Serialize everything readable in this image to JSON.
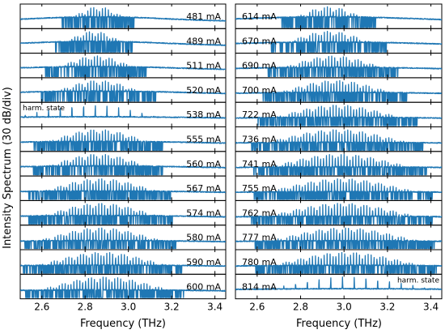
{
  "chart_data": {
    "type": "line",
    "ylabel": "Intensity Spectrum (30 dB/div)",
    "xlabel": "Frequency (THz)",
    "xlim": [
      2.5,
      3.45
    ],
    "xticks": [
      2.6,
      2.8,
      3.0,
      3.2,
      3.4
    ],
    "xtick_labels": [
      "2.6",
      "2.8",
      "3.0",
      "3.2",
      "3.4"
    ],
    "grid": false,
    "line_color": "#1f77b4",
    "harmonic_label": "harm. state",
    "columns": [
      {
        "panels": [
          {
            "current": "481 mA",
            "center": 2.86,
            "width": 0.1,
            "spacing": 0.0135,
            "floor": 0.48,
            "mode": "comb"
          },
          {
            "current": "489 mA",
            "center": 2.84,
            "width": 0.11,
            "spacing": 0.0135,
            "floor": 0.48,
            "mode": "comb"
          },
          {
            "current": "511 mA",
            "center": 2.85,
            "width": 0.14,
            "spacing": 0.0135,
            "floor": 0.45,
            "mode": "comb"
          },
          {
            "current": "520 mA",
            "center": 2.86,
            "width": 0.16,
            "spacing": 0.0135,
            "floor": 0.45,
            "mode": "comb"
          },
          {
            "current": "538 mA",
            "center": 2.82,
            "width": 0.25,
            "spacing": 0.054,
            "floor": 0.4,
            "mode": "harmonic",
            "annotation": "harm. state",
            "annotation_side": "left"
          },
          {
            "current": "555 mA",
            "center": 2.86,
            "width": 0.18,
            "spacing": 0.0135,
            "floor": 0.4,
            "mode": "comb"
          },
          {
            "current": "560 mA",
            "center": 2.86,
            "width": 0.18,
            "spacing": 0.0135,
            "floor": 0.4,
            "mode": "comb"
          },
          {
            "current": "567 mA",
            "center": 2.87,
            "width": 0.2,
            "spacing": 0.0135,
            "floor": 0.38,
            "mode": "comb"
          },
          {
            "current": "574 mA",
            "center": 2.87,
            "width": 0.2,
            "spacing": 0.0135,
            "floor": 0.38,
            "mode": "comb"
          },
          {
            "current": "580 mA",
            "center": 2.87,
            "width": 0.21,
            "spacing": 0.0135,
            "floor": 0.36,
            "mode": "comb"
          },
          {
            "current": "590 mA",
            "center": 2.88,
            "width": 0.22,
            "spacing": 0.0135,
            "floor": 0.36,
            "mode": "comb"
          },
          {
            "current": "600 mA",
            "center": 2.89,
            "width": 0.22,
            "spacing": 0.0135,
            "floor": 0.35,
            "mode": "comb"
          }
        ]
      },
      {
        "panels": [
          {
            "current": "614 mA",
            "center": 2.93,
            "width": 0.13,
            "spacing": 0.0135,
            "floor": 0.48,
            "mode": "comb"
          },
          {
            "current": "670 mA",
            "center": 2.93,
            "width": 0.16,
            "spacing": 0.0135,
            "floor": 0.45,
            "mode": "comb"
          },
          {
            "current": "690 mA",
            "center": 2.95,
            "width": 0.18,
            "spacing": 0.0135,
            "floor": 0.42,
            "mode": "comb"
          },
          {
            "current": "700 mA",
            "center": 2.96,
            "width": 0.2,
            "spacing": 0.0135,
            "floor": 0.4,
            "mode": "comb"
          },
          {
            "current": "722 mA",
            "center": 2.97,
            "width": 0.22,
            "spacing": 0.0135,
            "floor": 0.38,
            "mode": "comb"
          },
          {
            "current": "736 mA",
            "center": 2.97,
            "width": 0.24,
            "spacing": 0.0135,
            "floor": 0.36,
            "mode": "comb"
          },
          {
            "current": "741 mA",
            "center": 2.98,
            "width": 0.24,
            "spacing": 0.0135,
            "floor": 0.36,
            "mode": "comb"
          },
          {
            "current": "755 mA",
            "center": 2.99,
            "width": 0.25,
            "spacing": 0.0135,
            "floor": 0.35,
            "mode": "comb"
          },
          {
            "current": "762 mA",
            "center": 2.99,
            "width": 0.25,
            "spacing": 0.0135,
            "floor": 0.35,
            "mode": "comb"
          },
          {
            "current": "777 mA",
            "center": 3.0,
            "width": 0.25,
            "spacing": 0.0135,
            "floor": 0.35,
            "mode": "comb"
          },
          {
            "current": "780 mA",
            "center": 3.01,
            "width": 0.25,
            "spacing": 0.0135,
            "floor": 0.35,
            "mode": "comb"
          },
          {
            "current": "814 mA",
            "center": 3.02,
            "width": 0.28,
            "spacing": 0.054,
            "floor": 0.4,
            "mode": "harmonic",
            "annotation": "harm. state",
            "annotation_side": "right"
          }
        ]
      }
    ]
  }
}
